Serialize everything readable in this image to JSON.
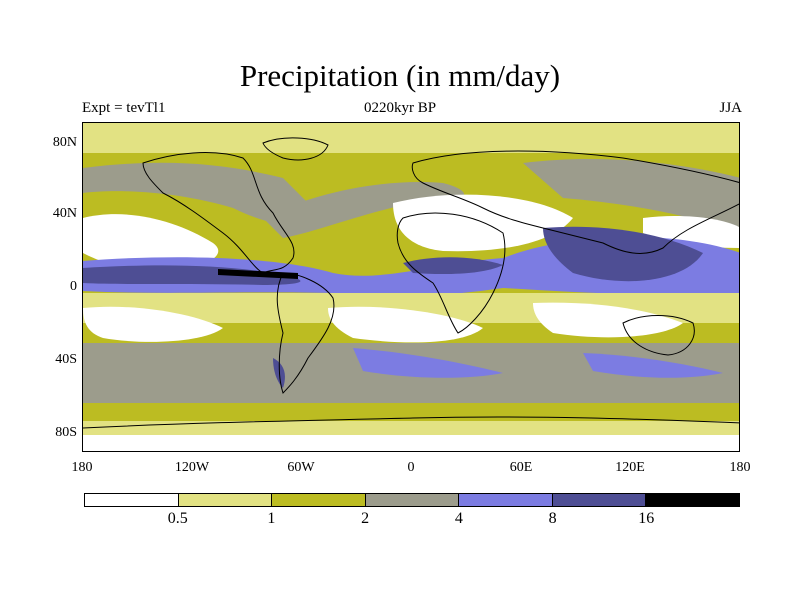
{
  "title": "Precipitation (in mm/day)",
  "left_label": "Expt = tevTl1",
  "center_label": "0220kyr BP",
  "right_label": "JJA",
  "lat_ticks": [
    "80N",
    "40N",
    "0",
    "40S",
    "80S"
  ],
  "lon_ticks": [
    "180",
    "120W",
    "60W",
    "0",
    "60E",
    "120E",
    "180"
  ],
  "colorbar": {
    "colors": [
      "#ffffff",
      "#e2e283",
      "#bcbc22",
      "#9c9c8c",
      "#7c7ce2",
      "#4e4e94",
      "#000000"
    ],
    "labels": [
      "0.5",
      "1",
      "2",
      "4",
      "8",
      "16"
    ]
  }
}
